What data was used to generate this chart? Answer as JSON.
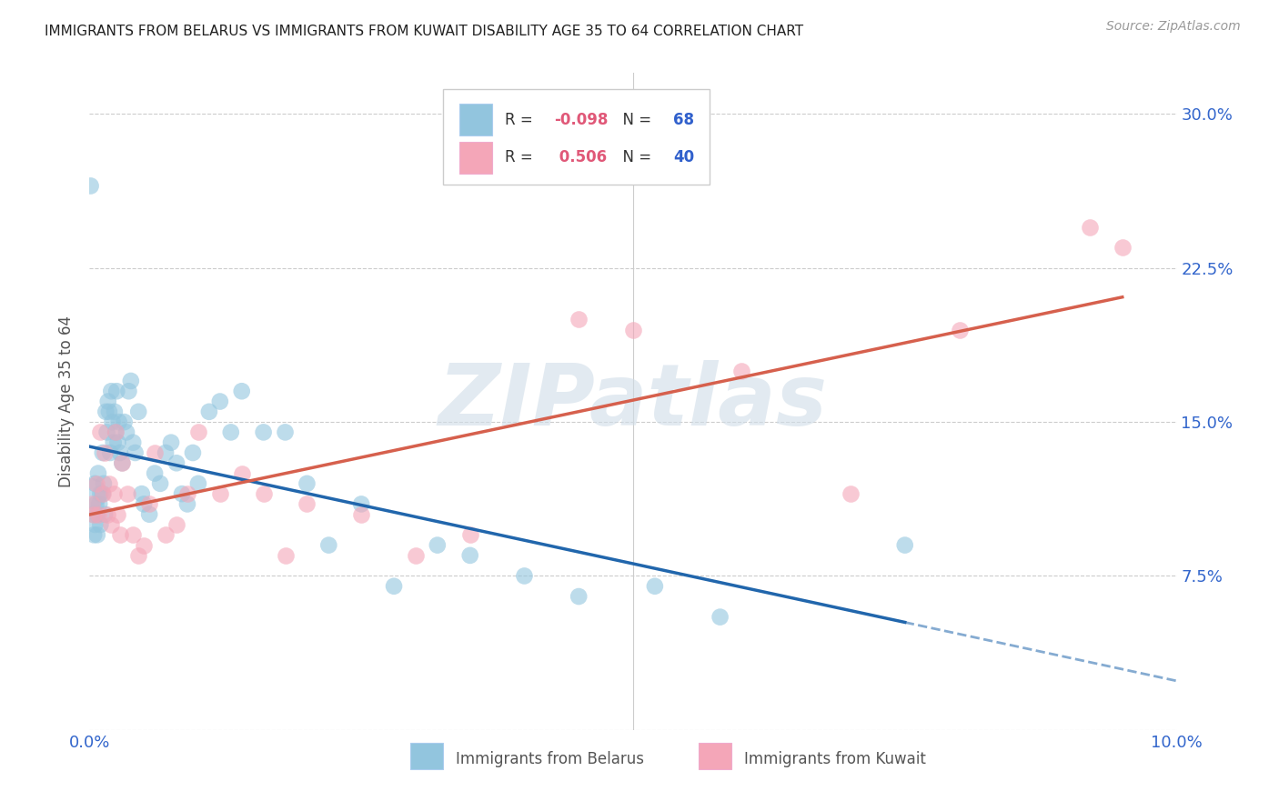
{
  "title": "IMMIGRANTS FROM BELARUS VS IMMIGRANTS FROM KUWAIT DISABILITY AGE 35 TO 64 CORRELATION CHART",
  "source": "Source: ZipAtlas.com",
  "ylabel": "Disability Age 35 to 64",
  "xlim": [
    0.0,
    10.0
  ],
  "ylim": [
    0.0,
    32.0
  ],
  "x_ticks": [
    0.0,
    2.5,
    5.0,
    7.5,
    10.0
  ],
  "x_tick_labels": [
    "0.0%",
    "",
    "",
    "",
    "10.0%"
  ],
  "y_ticks": [
    0.0,
    7.5,
    15.0,
    22.5,
    30.0
  ],
  "y_tick_labels": [
    "",
    "7.5%",
    "15.0%",
    "22.5%",
    "30.0%"
  ],
  "R_belarus": -0.098,
  "N_belarus": 68,
  "R_kuwait": 0.506,
  "N_kuwait": 40,
  "color_belarus": "#92c5de",
  "color_kuwait": "#f4a6b8",
  "line_color_belarus": "#2166ac",
  "line_color_kuwait": "#d6604d",
  "watermark": "ZIPatlas",
  "legend_label_belarus": "Immigrants from Belarus",
  "legend_label_kuwait": "Immigrants from Kuwait",
  "belarus_x": [
    0.02,
    0.03,
    0.04,
    0.05,
    0.05,
    0.06,
    0.07,
    0.07,
    0.08,
    0.09,
    0.1,
    0.1,
    0.12,
    0.12,
    0.13,
    0.14,
    0.15,
    0.16,
    0.17,
    0.18,
    0.19,
    0.2,
    0.21,
    0.22,
    0.23,
    0.24,
    0.25,
    0.26,
    0.27,
    0.28,
    0.3,
    0.32,
    0.34,
    0.36,
    0.38,
    0.4,
    0.42,
    0.45,
    0.48,
    0.5,
    0.55,
    0.6,
    0.65,
    0.7,
    0.75,
    0.8,
    0.85,
    0.9,
    0.95,
    1.0,
    1.1,
    1.2,
    1.3,
    1.4,
    1.6,
    1.8,
    2.0,
    2.2,
    2.5,
    2.8,
    3.2,
    3.5,
    4.0,
    4.5,
    5.2,
    5.8,
    7.5,
    0.01
  ],
  "belarus_y": [
    11.5,
    10.5,
    9.5,
    12.0,
    10.0,
    11.0,
    10.5,
    9.5,
    12.5,
    11.0,
    11.5,
    10.0,
    13.5,
    11.5,
    12.0,
    10.5,
    15.5,
    14.5,
    16.0,
    15.5,
    13.5,
    16.5,
    15.0,
    14.0,
    15.5,
    14.5,
    16.5,
    14.0,
    15.0,
    13.5,
    13.0,
    15.0,
    14.5,
    16.5,
    17.0,
    14.0,
    13.5,
    15.5,
    11.5,
    11.0,
    10.5,
    12.5,
    12.0,
    13.5,
    14.0,
    13.0,
    11.5,
    11.0,
    13.5,
    12.0,
    15.5,
    16.0,
    14.5,
    16.5,
    14.5,
    14.5,
    12.0,
    9.0,
    11.0,
    7.0,
    9.0,
    8.5,
    7.5,
    6.5,
    7.0,
    5.5,
    9.0,
    26.5
  ],
  "belarus_sizes": [
    600,
    180,
    180,
    180,
    180,
    180,
    180,
    180,
    180,
    180,
    180,
    180,
    180,
    180,
    180,
    180,
    180,
    180,
    180,
    180,
    180,
    180,
    180,
    180,
    180,
    180,
    180,
    180,
    180,
    180,
    180,
    180,
    180,
    180,
    180,
    180,
    180,
    180,
    180,
    180,
    180,
    180,
    180,
    180,
    180,
    180,
    180,
    180,
    180,
    180,
    180,
    180,
    180,
    180,
    180,
    180,
    180,
    180,
    180,
    180,
    180,
    180,
    180,
    180,
    180,
    180,
    180,
    180
  ],
  "kuwait_x": [
    0.02,
    0.04,
    0.06,
    0.08,
    0.1,
    0.12,
    0.14,
    0.16,
    0.18,
    0.2,
    0.22,
    0.24,
    0.26,
    0.28,
    0.3,
    0.35,
    0.4,
    0.45,
    0.5,
    0.55,
    0.6,
    0.7,
    0.8,
    0.9,
    1.0,
    1.2,
    1.4,
    1.6,
    1.8,
    2.0,
    2.5,
    3.0,
    3.5,
    4.5,
    5.0,
    6.0,
    7.0,
    8.0,
    9.2,
    9.5
  ],
  "kuwait_y": [
    11.0,
    10.5,
    12.0,
    10.5,
    14.5,
    11.5,
    13.5,
    10.5,
    12.0,
    10.0,
    11.5,
    14.5,
    10.5,
    9.5,
    13.0,
    11.5,
    9.5,
    8.5,
    9.0,
    11.0,
    13.5,
    9.5,
    10.0,
    11.5,
    14.5,
    11.5,
    12.5,
    11.5,
    8.5,
    11.0,
    10.5,
    8.5,
    9.5,
    20.0,
    19.5,
    17.5,
    11.5,
    19.5,
    24.5,
    23.5
  ]
}
